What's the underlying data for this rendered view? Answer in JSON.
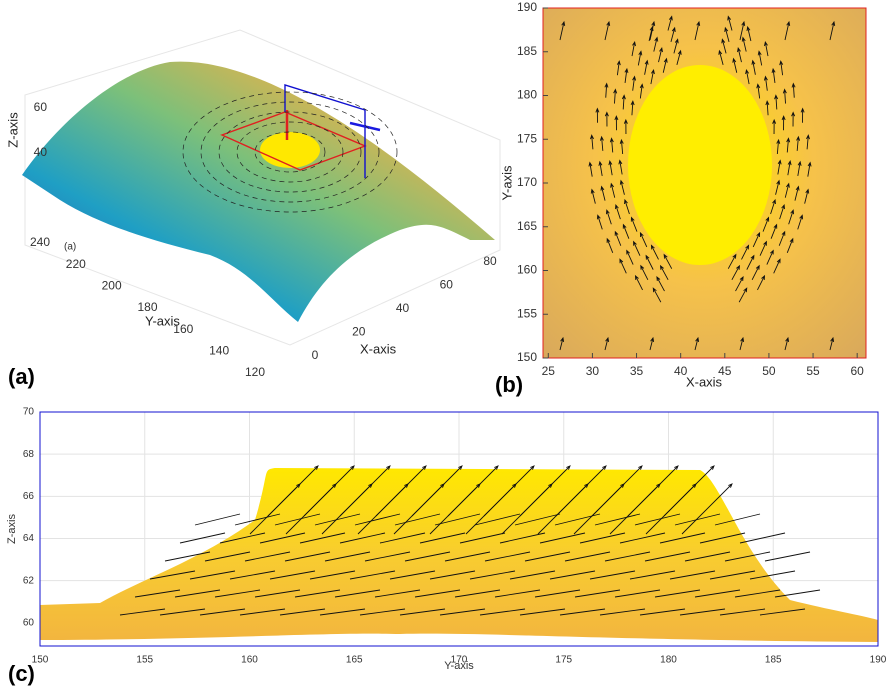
{
  "chart_data": [
    {
      "type": "surface",
      "panel_label": "(a)",
      "inner_label": "(a)",
      "xlabel": "X-axis",
      "ylabel": "Y-axis",
      "zlabel": "Z-axis",
      "xlim": [
        0,
        80
      ],
      "xticks": [
        0,
        20,
        40,
        60,
        80
      ],
      "ylim": [
        120,
        240
      ],
      "yticks": [
        120,
        140,
        160,
        180,
        200,
        220,
        240
      ],
      "zlim": [
        40,
        60
      ],
      "zticks": [
        40,
        60
      ]
    },
    {
      "type": "quiver",
      "panel_label": "(b)",
      "xlabel": "X-axis",
      "ylabel": "Y-axis",
      "xlim": [
        24.4,
        61
      ],
      "xticks": [
        25,
        30,
        35,
        40,
        45,
        50,
        55,
        60
      ],
      "ylim": [
        150,
        190
      ],
      "yticks": [
        150,
        155,
        160,
        165,
        170,
        175,
        180,
        185,
        190
      ],
      "frame_color": "#e02020"
    },
    {
      "type": "quiver",
      "panel_label": "(c)",
      "xlabel": "Y-axis",
      "ylabel": "Z-axis",
      "xlim": [
        150,
        190
      ],
      "xticks": [
        150,
        155,
        160,
        165,
        170,
        175,
        180,
        185,
        190
      ],
      "ylim": [
        58.9,
        70
      ],
      "yticks": [
        60,
        62,
        64,
        66,
        68,
        70
      ],
      "frame_color": "#1010d0",
      "grid": true
    }
  ]
}
